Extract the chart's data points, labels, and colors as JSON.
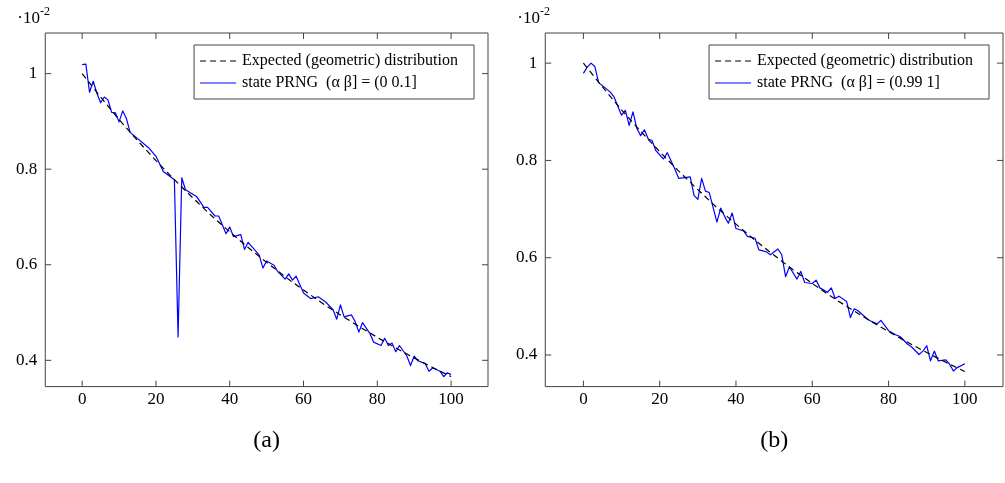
{
  "chart_data": [
    {
      "type": "line",
      "ylabel": "·10$^{-2}$",
      "annotations": [
        "(a)"
      ],
      "xlim": [
        -10,
        110
      ],
      "ylim": [
        0.345,
        1.085
      ],
      "xticks": [
        0,
        20,
        40,
        60,
        80,
        100
      ],
      "yticks": [
        0.4,
        0.6,
        0.8,
        1
      ],
      "grid": false,
      "legend": "top right",
      "marker": "none",
      "series": [
        {
          "name": "Expected (geometric) distribution",
          "color": "#000000",
          "line_style": "dashed",
          "x": [
            0,
            5,
            10,
            15,
            20,
            25,
            30,
            35,
            40,
            45,
            50,
            55,
            60,
            65,
            70,
            75,
            80,
            85,
            90,
            95,
            100
          ],
          "values": [
            1,
            0.951,
            0.904,
            0.86,
            0.818,
            0.778,
            0.74,
            0.703,
            0.669,
            0.636,
            0.605,
            0.575,
            0.547,
            0.52,
            0.495,
            0.471,
            0.448,
            0.426,
            0.405,
            0.385,
            0.366
          ]
        },
        {
          "name": "state PRNG  (α β] = (0 0.1]",
          "color": "#0000ff",
          "line_style": "solid",
          "x": [
            0,
            1,
            2,
            3,
            4,
            5,
            6,
            7,
            8,
            9,
            10,
            11,
            12,
            13,
            18,
            20,
            22,
            25,
            26,
            27,
            28,
            31,
            33,
            34,
            36,
            37,
            39,
            40,
            41,
            43,
            44,
            45,
            48,
            49,
            50,
            52,
            53,
            55,
            56,
            57,
            58,
            60,
            62,
            64,
            66,
            68,
            69,
            70,
            71,
            73,
            74,
            75,
            76,
            78,
            79,
            81,
            82,
            83,
            84,
            85,
            86,
            88,
            89,
            90,
            91,
            93,
            94,
            95,
            97,
            98,
            99,
            100
          ],
          "values": [
            1.019,
            1.02,
            0.961,
            0.984,
            0.959,
            0.939,
            0.951,
            0.945,
            0.919,
            0.918,
            0.899,
            0.922,
            0.906,
            0.877,
            0.845,
            0.827,
            0.795,
            0.778,
            0.449,
            0.782,
            0.757,
            0.743,
            0.72,
            0.72,
            0.702,
            0.702,
            0.665,
            0.679,
            0.659,
            0.663,
            0.632,
            0.647,
            0.62,
            0.593,
            0.608,
            0.599,
            0.586,
            0.57,
            0.581,
            0.568,
            0.576,
            0.541,
            0.529,
            0.533,
            0.522,
            0.506,
            0.486,
            0.516,
            0.491,
            0.495,
            0.481,
            0.459,
            0.479,
            0.456,
            0.438,
            0.431,
            0.446,
            0.431,
            0.436,
            0.418,
            0.431,
            0.409,
            0.389,
            0.409,
            0.399,
            0.393,
            0.377,
            0.384,
            0.377,
            0.366,
            0.374,
            0.37
          ]
        }
      ]
    },
    {
      "type": "line",
      "ylabel": "·10$^{-2}$",
      "annotations": [
        "(b)"
      ],
      "xlim": [
        -10,
        110
      ],
      "ylim": [
        0.335,
        1.062
      ],
      "xticks": [
        0,
        20,
        40,
        60,
        80,
        100
      ],
      "yticks": [
        0.4,
        0.6,
        0.8,
        1
      ],
      "grid": false,
      "legend": "top right",
      "marker": "none",
      "series": [
        {
          "name": "Expected (geometric) distribution",
          "color": "#000000",
          "line_style": "dashed",
          "x": [
            0,
            5,
            10,
            15,
            20,
            25,
            30,
            35,
            40,
            45,
            50,
            55,
            60,
            65,
            70,
            75,
            80,
            85,
            90,
            95,
            100
          ],
          "values": [
            1,
            0.951,
            0.904,
            0.86,
            0.818,
            0.778,
            0.74,
            0.703,
            0.669,
            0.636,
            0.605,
            0.575,
            0.547,
            0.52,
            0.495,
            0.471,
            0.448,
            0.426,
            0.405,
            0.385,
            0.366
          ]
        },
        {
          "name": "state PRNG  (α β] = (0.99 1]",
          "color": "#0000ff",
          "line_style": "solid",
          "x": [
            0,
            1,
            2,
            3,
            4,
            7,
            8,
            10,
            11,
            12,
            13,
            14,
            15,
            16,
            17,
            18,
            19,
            21,
            22,
            24,
            25,
            28,
            29,
            30,
            31,
            32,
            33,
            35,
            36,
            37,
            38,
            39,
            40,
            42,
            43,
            45,
            46,
            48,
            49,
            51,
            52,
            53,
            54,
            56,
            57,
            58,
            60,
            61,
            62,
            64,
            65,
            66,
            67,
            69,
            70,
            71,
            72,
            74,
            75,
            77,
            78,
            80,
            82,
            83,
            85,
            86,
            88,
            89,
            90,
            91,
            92,
            93,
            95,
            96,
            97,
            98,
            100
          ],
          "values": [
            0.979,
            0.992,
            1.0,
            0.993,
            0.96,
            0.941,
            0.931,
            0.893,
            0.903,
            0.872,
            0.9,
            0.866,
            0.851,
            0.863,
            0.844,
            0.841,
            0.82,
            0.803,
            0.816,
            0.782,
            0.763,
            0.766,
            0.728,
            0.72,
            0.763,
            0.737,
            0.734,
            0.673,
            0.702,
            0.685,
            0.671,
            0.692,
            0.66,
            0.655,
            0.644,
            0.64,
            0.616,
            0.612,
            0.606,
            0.618,
            0.606,
            0.561,
            0.581,
            0.556,
            0.572,
            0.549,
            0.547,
            0.554,
            0.538,
            0.529,
            0.538,
            0.516,
            0.521,
            0.51,
            0.477,
            0.495,
            0.491,
            0.477,
            0.471,
            0.464,
            0.471,
            0.45,
            0.441,
            0.438,
            0.422,
            0.417,
            0.401,
            0.408,
            0.419,
            0.388,
            0.408,
            0.388,
            0.39,
            0.381,
            0.367,
            0.374,
            0.382
          ]
        }
      ]
    }
  ]
}
